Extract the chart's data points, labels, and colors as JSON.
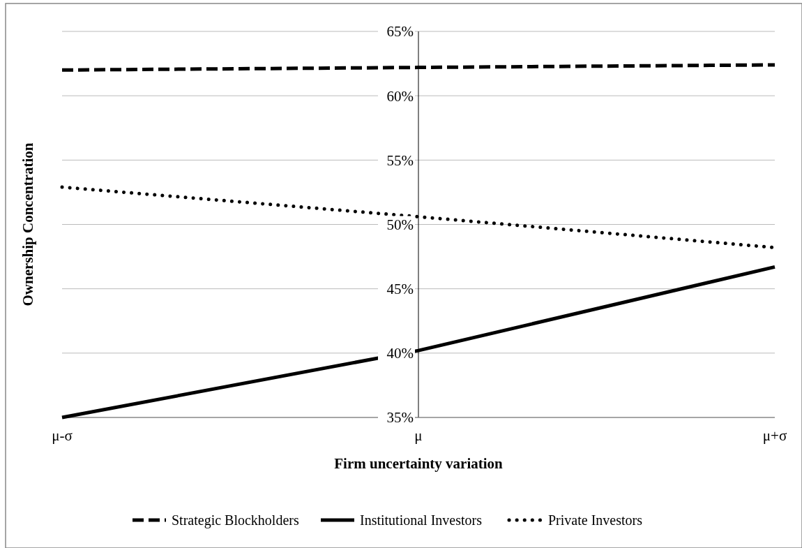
{
  "chart_data": {
    "type": "line",
    "xlabel": "Firm uncertainty variation",
    "ylabel": "Ownership Concentration",
    "categories": [
      "μ-σ",
      "μ",
      "μ+σ"
    ],
    "ylim": [
      35,
      65
    ],
    "yticks": [
      {
        "value": 35,
        "label": "35%"
      },
      {
        "value": 40,
        "label": "40%"
      },
      {
        "value": 45,
        "label": "45%"
      },
      {
        "value": 50,
        "label": "50%"
      },
      {
        "value": 55,
        "label": "55%"
      },
      {
        "value": 60,
        "label": "60%"
      },
      {
        "value": 65,
        "label": "65%"
      }
    ],
    "grid": "y",
    "legend": "bottom",
    "marker": "none",
    "series": [
      {
        "name": "Strategic Blockholders",
        "color": "#000000",
        "line_style": "dashed",
        "values": [
          62.0,
          62.2,
          62.4
        ]
      },
      {
        "name": "Institutional Investors",
        "color": "#000000",
        "line_style": "solid",
        "values": [
          35.0,
          40.2,
          46.7
        ]
      },
      {
        "name": "Private Investors",
        "color": "#000000",
        "line_style": "dotted",
        "values": [
          52.9,
          50.6,
          48.2
        ]
      }
    ]
  }
}
